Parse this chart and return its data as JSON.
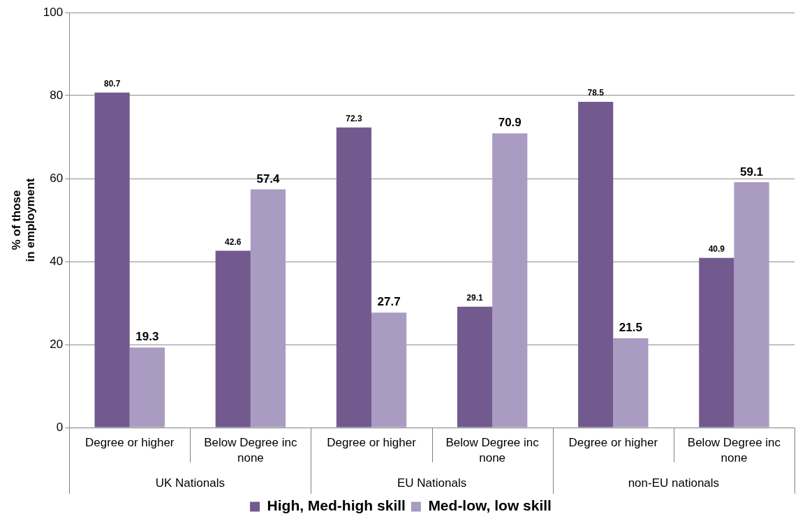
{
  "chart_data": {
    "type": "bar",
    "ylabel": "% of those in employment",
    "categories": [
      "Degree or higher",
      "Below Degree inc none",
      "Degree or higher",
      "Below Degree inc none",
      "Degree or higher",
      "Below Degree inc none"
    ],
    "series": [
      {
        "name": "High, Med-high skill",
        "color": "#725a8f",
        "values": [
          80.7,
          42.6,
          72.3,
          29.1,
          78.5,
          40.9
        ]
      },
      {
        "name": "Med-low, low skill",
        "color": "#a99bc1",
        "values": [
          19.3,
          57.4,
          27.7,
          70.9,
          21.5,
          59.1
        ]
      }
    ],
    "annotations": [
      "UK Nationals",
      "EU Nationals",
      "non-EU nationals"
    ],
    "ylim": [
      0,
      100
    ],
    "yticks": [
      0,
      20,
      40,
      60,
      80,
      100
    ],
    "grid": "y",
    "legend": "bottom",
    "data_labels": true
  }
}
